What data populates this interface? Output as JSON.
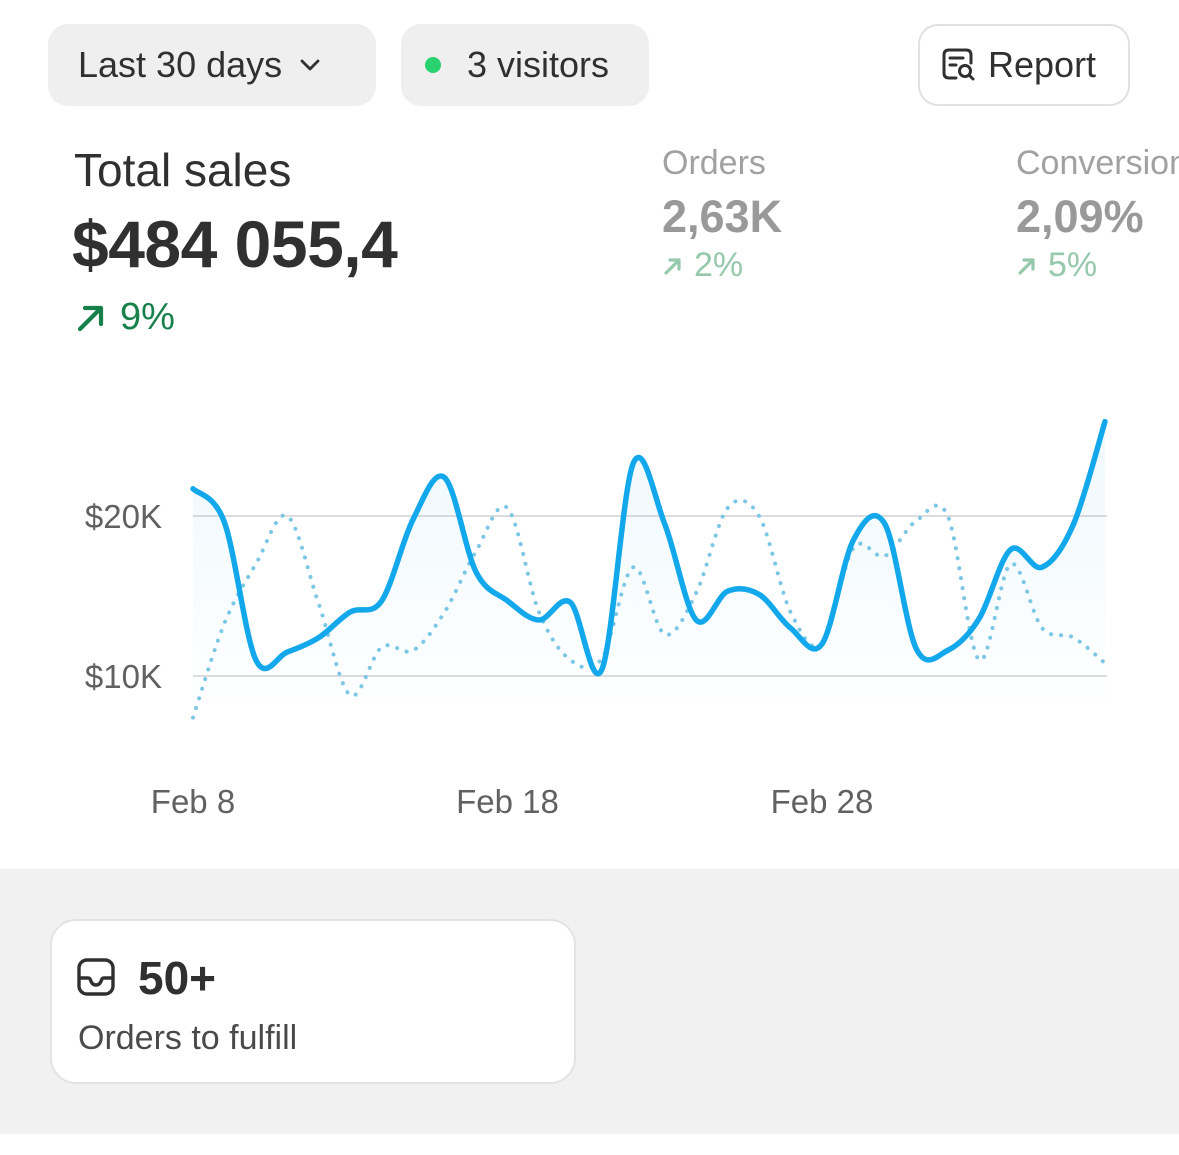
{
  "toolbar": {
    "date_range_label": "Last 30 days",
    "visitors_label": "3 visitors",
    "report_label": "Report"
  },
  "metrics": {
    "total_sales": {
      "label": "Total sales",
      "value": "$484 055,4",
      "trend": "9%",
      "trend_direction": "up"
    },
    "orders": {
      "label": "Orders",
      "value": "2,63K",
      "trend": "2%",
      "trend_direction": "up"
    },
    "conversion": {
      "label": "Conversion rate",
      "value": "2,09%",
      "trend": "5%",
      "trend_direction": "up"
    }
  },
  "colors": {
    "current_series": "#13a8ec",
    "comparison_series": "#7cc7e6",
    "trend_up": "#18804a",
    "live_dot": "#29d16f"
  },
  "chart_data": {
    "type": "line",
    "y_ticks": [
      "$20K",
      "$10K"
    ],
    "x_ticks": [
      "Feb 8",
      "Feb 18",
      "Feb 28"
    ],
    "grid": true,
    "y_unit": "USD thousands",
    "x": [
      "Feb 8",
      "Feb 9",
      "Feb 10",
      "Feb 11",
      "Feb 12",
      "Feb 13",
      "Feb 14",
      "Feb 15",
      "Feb 16",
      "Feb 17",
      "Feb 18",
      "Feb 19",
      "Feb 20",
      "Feb 21",
      "Feb 22",
      "Feb 23",
      "Feb 24",
      "Feb 25",
      "Feb 26",
      "Feb 27",
      "Feb 28",
      "Mar 1",
      "Mar 2",
      "Mar 3",
      "Mar 4",
      "Mar 5",
      "Mar 6",
      "Mar 7",
      "Mar 8",
      "Mar 9"
    ],
    "series": [
      {
        "style": "solid",
        "values": [
          21.7,
          19.6,
          11.0,
          11.5,
          12.4,
          14.0,
          14.7,
          19.8,
          22.4,
          16.5,
          14.7,
          13.5,
          14.6,
          10.4,
          23.3,
          19.5,
          13.5,
          15.3,
          15.1,
          13.0,
          12.0,
          18.5,
          19.5,
          11.7,
          11.6,
          13.6,
          17.9,
          16.8,
          19.5,
          25.9
        ]
      },
      {
        "style": "dotted",
        "values": [
          7.4,
          13.3,
          17.0,
          20.0,
          14.5,
          8.8,
          11.8,
          11.6,
          14.0,
          17.8,
          20.5,
          14.0,
          11.0,
          11.1,
          16.8,
          12.6,
          15.2,
          20.5,
          20.0,
          14.0,
          12.0,
          18.0,
          17.5,
          19.7,
          20.0,
          11.0,
          17.0,
          13.0,
          12.4,
          10.8
        ]
      }
    ]
  },
  "fulfill": {
    "count": "50+",
    "label": "Orders to fulfill"
  }
}
